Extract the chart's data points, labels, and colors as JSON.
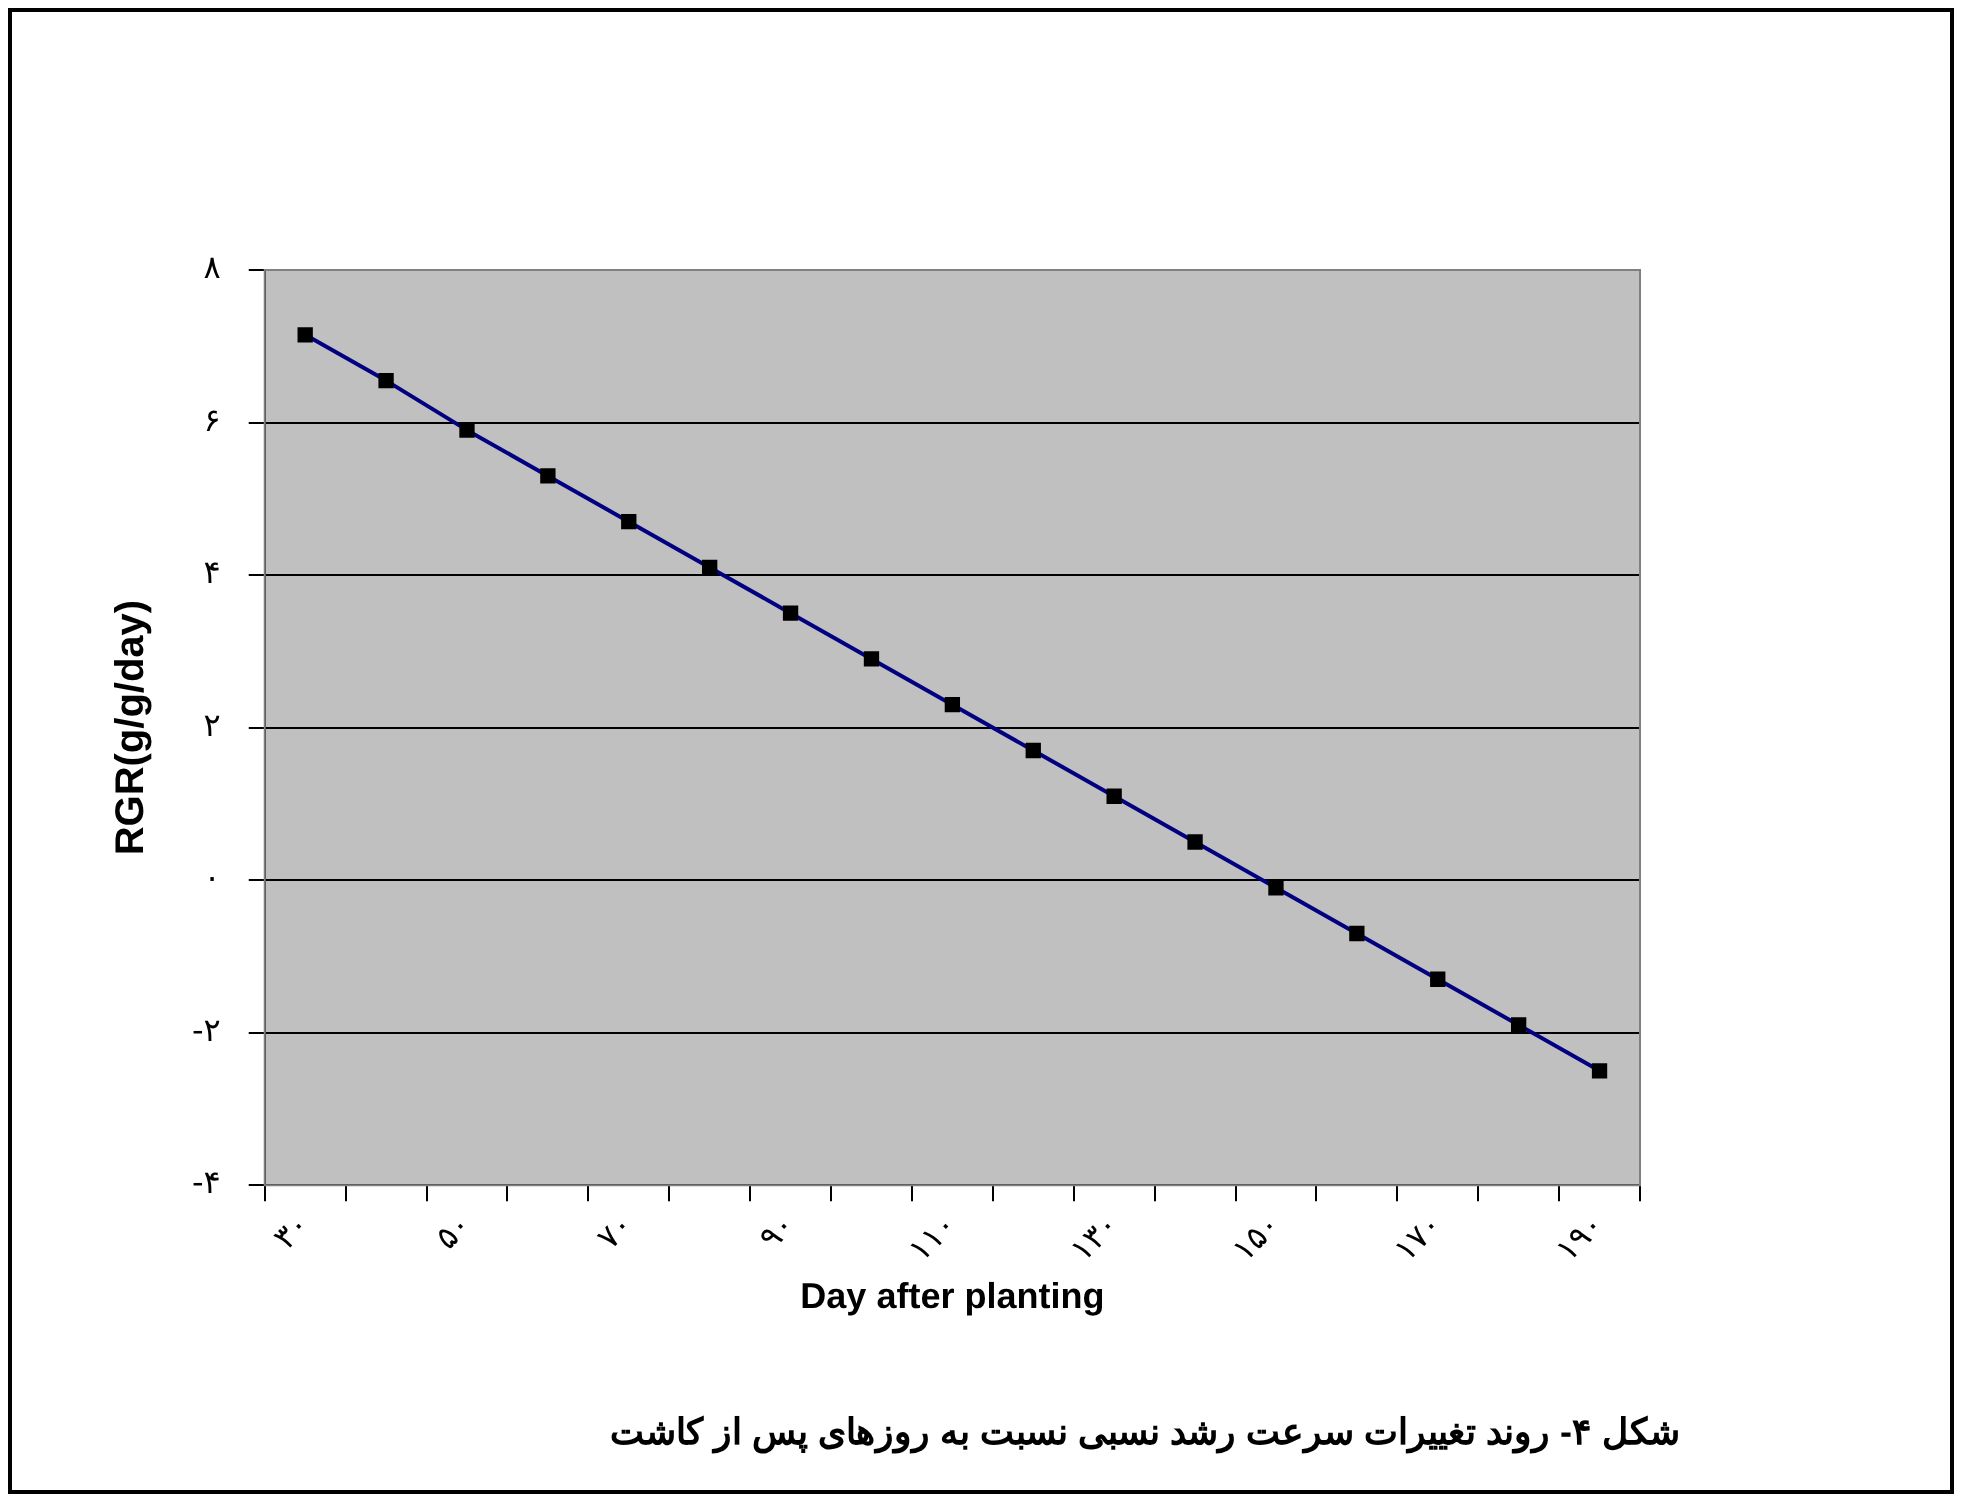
{
  "chart_data": {
    "type": "line",
    "xlabel": "Day after planting",
    "ylabel": "RGR(g/g/day)",
    "categories": [
      "۳۰",
      null,
      "۵۰",
      null,
      "۷۰",
      null,
      "۹۰",
      null,
      "۱۱۰",
      null,
      "۱۳۰",
      null,
      "۱۵۰",
      null,
      "۱۷۰",
      null,
      "۱۹۰"
    ],
    "values": [
      7.15,
      6.55,
      5.9,
      5.3,
      4.7,
      4.1,
      3.5,
      2.9,
      2.3,
      1.7,
      1.1,
      0.5,
      -0.1,
      -0.7,
      -1.3,
      -1.9,
      -2.5
    ],
    "color": "#000080",
    "marker": "square",
    "line_style": "solid",
    "ylim": [
      -4,
      8
    ],
    "yticks": [
      {
        "value": -4,
        "label": "-۴"
      },
      {
        "value": -2,
        "label": "-۲"
      },
      {
        "value": 0,
        "label": "۰"
      },
      {
        "value": 2,
        "label": "۲"
      },
      {
        "value": 4,
        "label": "۴"
      },
      {
        "value": 6,
        "label": "۶"
      },
      {
        "value": 8,
        "label": "۸"
      }
    ],
    "grid": "y",
    "legend": false,
    "annotations": [
      "شکل ۴- روند تغییرات سرعت رشد نسبی نسبت به روزهای پس از کاشت"
    ]
  }
}
